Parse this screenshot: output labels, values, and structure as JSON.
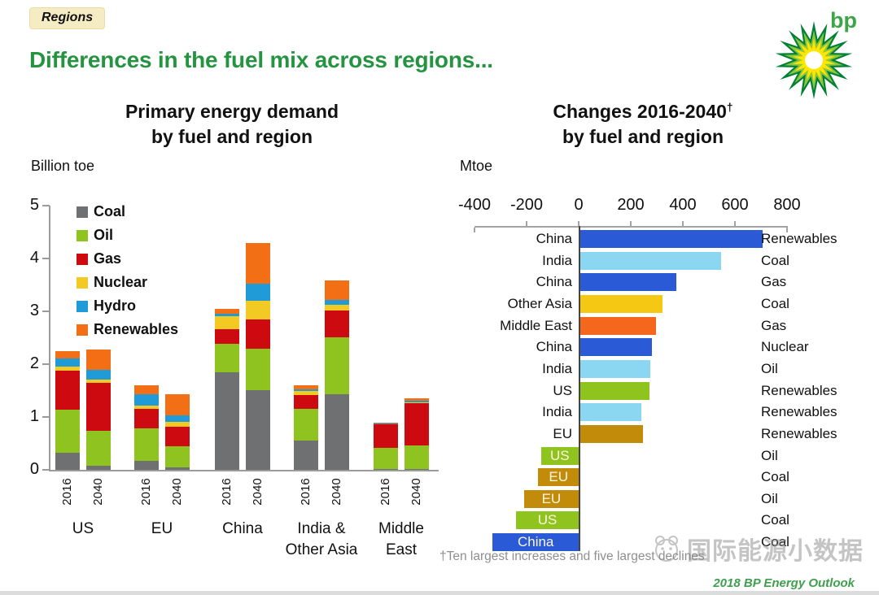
{
  "page": {
    "badge": "Regions",
    "title": "Differences in the fuel mix across regions...",
    "brand_wordmark": "bp",
    "footnote": "†Ten largest increases and five largest declines",
    "watermark_text": "国际能源小数据",
    "credit_text": "2018 BP Energy Outlook"
  },
  "colors": {
    "title_green": "#259440",
    "bp_green": "#3ca548",
    "credit_green": "#3f9f4c",
    "fuel": {
      "Coal": "#6f7072",
      "Oil": "#8fc31f",
      "Gas": "#cc0a10",
      "Nuclear": "#f3ca24",
      "Hydro": "#219bd8",
      "Renewables": "#f26f16"
    },
    "region": {
      "China": "#2a5ad5",
      "India": "#8bd7f2",
      "Other Asia": "#f4c813",
      "Middle East": "#f4671d",
      "US": "#8fc31e",
      "EU": "#c28b09"
    }
  },
  "chart_data": [
    {
      "type": "bar",
      "subtype": "stacked-vertical",
      "title_lines": [
        "Primary energy demand",
        "by fuel and region"
      ],
      "unit_label": "Billion toe",
      "ylabel": "Billion toe",
      "ylim": [
        0,
        5
      ],
      "yticks": [
        5,
        4,
        3,
        2,
        1,
        0
      ],
      "grid": false,
      "legend_position": "upper-left-inside",
      "stack_order": [
        "Coal",
        "Oil",
        "Gas",
        "Nuclear",
        "Hydro",
        "Renewables"
      ],
      "groups": [
        {
          "label": "US",
          "label_lines": [
            "US"
          ],
          "bars": [
            {
              "year": "2016",
              "values": {
                "Coal": 0.33,
                "Oil": 0.81,
                "Gas": 0.74,
                "Nuclear": 0.07,
                "Hydro": 0.16,
                "Renewables": 0.13
              }
            },
            {
              "year": "2040",
              "values": {
                "Coal": 0.07,
                "Oil": 0.67,
                "Gas": 0.9,
                "Nuclear": 0.07,
                "Hydro": 0.18,
                "Renewables": 0.39
              }
            }
          ]
        },
        {
          "label": "EU",
          "label_lines": [
            "EU"
          ],
          "bars": [
            {
              "year": "2016",
              "values": {
                "Coal": 0.17,
                "Oil": 0.61,
                "Gas": 0.37,
                "Nuclear": 0.07,
                "Hydro": 0.21,
                "Renewables": 0.17
              }
            },
            {
              "year": "2040",
              "values": {
                "Coal": 0.05,
                "Oil": 0.4,
                "Gas": 0.37,
                "Nuclear": 0.08,
                "Hydro": 0.13,
                "Renewables": 0.4
              }
            }
          ]
        },
        {
          "label": "China",
          "label_lines": [
            "China"
          ],
          "bars": [
            {
              "year": "2016",
              "values": {
                "Coal": 1.84,
                "Oil": 0.55,
                "Gas": 0.27,
                "Nuclear": 0.24,
                "Hydro": 0.06,
                "Renewables": 0.09
              }
            },
            {
              "year": "2040",
              "values": {
                "Coal": 1.51,
                "Oil": 0.78,
                "Gas": 0.55,
                "Nuclear": 0.36,
                "Hydro": 0.33,
                "Renewables": 0.77
              }
            }
          ]
        },
        {
          "label": "India & Other Asia",
          "label_lines": [
            "India &",
            "Other Asia"
          ],
          "bars": [
            {
              "year": "2016",
              "values": {
                "Coal": 0.56,
                "Oil": 0.59,
                "Gas": 0.26,
                "Nuclear": 0.08,
                "Hydro": 0.04,
                "Renewables": 0.07
              }
            },
            {
              "year": "2040",
              "values": {
                "Coal": 1.43,
                "Oil": 1.08,
                "Gas": 0.51,
                "Nuclear": 0.11,
                "Hydro": 0.09,
                "Renewables": 0.36
              }
            }
          ]
        },
        {
          "label": "Middle East",
          "label_lines": [
            "Middle",
            "East"
          ],
          "bars": [
            {
              "year": "2016",
              "values": {
                "Coal": 0.01,
                "Oil": 0.4,
                "Gas": 0.45,
                "Nuclear": 0.0,
                "Hydro": 0.01,
                "Renewables": 0.02
              }
            },
            {
              "year": "2040",
              "values": {
                "Coal": 0.01,
                "Oil": 0.45,
                "Gas": 0.8,
                "Nuclear": 0.02,
                "Hydro": 0.03,
                "Renewables": 0.04
              }
            }
          ]
        }
      ]
    },
    {
      "type": "bar",
      "subtype": "horizontal",
      "title_main": "Changes 2016-2040",
      "title_sup": "†",
      "title_line2": "by fuel and region",
      "unit_label": "Mtoe",
      "xlabel": "Mtoe",
      "xlim": [
        -400,
        800
      ],
      "xticks": [
        -400,
        -200,
        0,
        200,
        400,
        600,
        800
      ],
      "grid": false,
      "rows": [
        {
          "region": "China",
          "fuel": "Renewables",
          "value": 700
        },
        {
          "region": "India",
          "fuel": "Coal",
          "value": 540
        },
        {
          "region": "China",
          "fuel": "Gas",
          "value": 370
        },
        {
          "region": "Other Asia",
          "fuel": "Coal",
          "value": 315
        },
        {
          "region": "Middle East",
          "fuel": "Gas",
          "value": 290
        },
        {
          "region": "China",
          "fuel": "Nuclear",
          "value": 275
        },
        {
          "region": "India",
          "fuel": "Oil",
          "value": 270
        },
        {
          "region": "US",
          "fuel": "Renewables",
          "value": 265
        },
        {
          "region": "India",
          "fuel": "Renewables",
          "value": 235
        },
        {
          "region": "EU",
          "fuel": "Renewables",
          "value": 240
        },
        {
          "region": "US",
          "fuel": "Oil",
          "value": -145,
          "label_inside": true
        },
        {
          "region": "EU",
          "fuel": "Coal",
          "value": -155,
          "label_inside": true
        },
        {
          "region": "EU",
          "fuel": "Oil",
          "value": -210,
          "label_inside": true
        },
        {
          "region": "US",
          "fuel": "Coal",
          "value": -240,
          "label_inside": true
        },
        {
          "region": "China",
          "fuel": "Coal",
          "value": -330,
          "label_inside": true
        }
      ]
    }
  ]
}
